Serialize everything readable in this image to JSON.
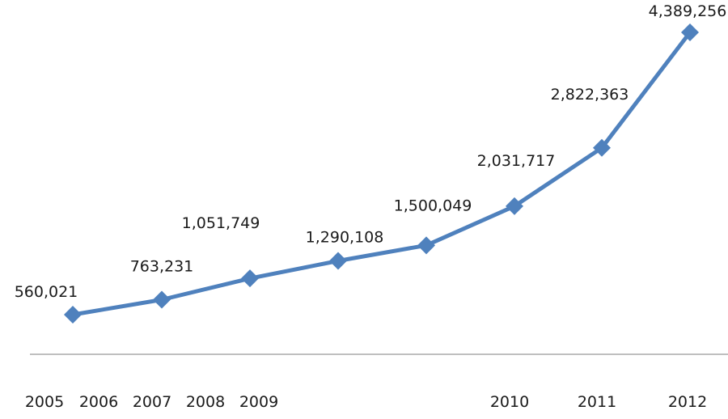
{
  "chart_data": {
    "type": "line",
    "title": "",
    "xlabel": "",
    "ylabel": "",
    "x": [
      "2005",
      "2006",
      "2007",
      "2008",
      "2009",
      "2010",
      "2011",
      "2012"
    ],
    "series": [
      {
        "name": "",
        "values": [
          560021,
          763231,
          1051749,
          1290108,
          1500049,
          2031717,
          2822363,
          4389256
        ],
        "data_labels": [
          "560,021",
          "763,231",
          "1,051,749",
          "1,290,108",
          "1,500,049",
          "2,031,717",
          "2,822,363",
          "4,389,256"
        ]
      }
    ],
    "x_tick_labels": [
      "2005",
      "2006",
      "2007",
      "2008",
      "2009",
      "2010",
      "2011",
      "2012"
    ],
    "ylim": [
      0,
      4389256
    ],
    "grid": false,
    "legend": "none",
    "colors": {
      "line": "#4f81bd",
      "axis": "#bfbfbf",
      "text": "#1a1a1a"
    },
    "marker": "diamond"
  }
}
